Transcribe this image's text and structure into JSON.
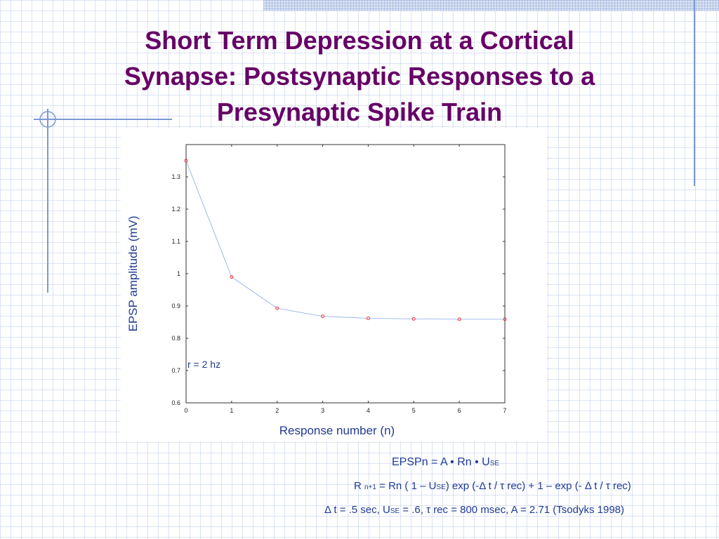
{
  "slide": {
    "title_lines": [
      "Short Term Depression at a Cortical",
      "Synapse: Postsynaptic Responses to a",
      "Presynaptic Spike Train"
    ],
    "equations": {
      "line1": {
        "a": "EPSPn = A • Rn • U",
        "sub": "SE"
      },
      "line2": {
        "a": "R ",
        "sub1": "n+1",
        "b": " = Rn ( 1 – U",
        "sub2": "SE",
        "c": ") exp (-Δ t / τ rec) + 1 – exp (- Δ t / τ rec)"
      },
      "line3": {
        "a": "Δ t = .5 sec, U",
        "sub": "SE",
        "b": " = .6, τ rec = 800 msec, A = 2.71  (Tsodyks 1998)"
      }
    },
    "colors": {
      "title": "#660066",
      "text": "#1f3a93",
      "markers": "#ff2020",
      "line": "#8aa8e8"
    }
  },
  "chart_data": {
    "type": "line",
    "title": "",
    "xlabel": "Response number (n)",
    "ylabel": "EPSP amplitude (mV)",
    "xlim": [
      0,
      7
    ],
    "ylim": [
      0.6,
      1.4
    ],
    "x_ticks": [
      "0",
      "1",
      "2",
      "3",
      "4",
      "5",
      "6",
      "7"
    ],
    "y_ticks": [
      "0.6",
      "0.7",
      "0.8",
      "0.9",
      "1",
      "1.1",
      "1.2",
      "1.3"
    ],
    "annotation": "r = 2 hz",
    "series": [
      {
        "x": [
          0,
          1,
          2,
          3,
          4,
          5,
          6,
          7
        ],
        "values": [
          1.35,
          0.99,
          0.893,
          0.868,
          0.862,
          0.86,
          0.859,
          0.859
        ]
      }
    ]
  }
}
